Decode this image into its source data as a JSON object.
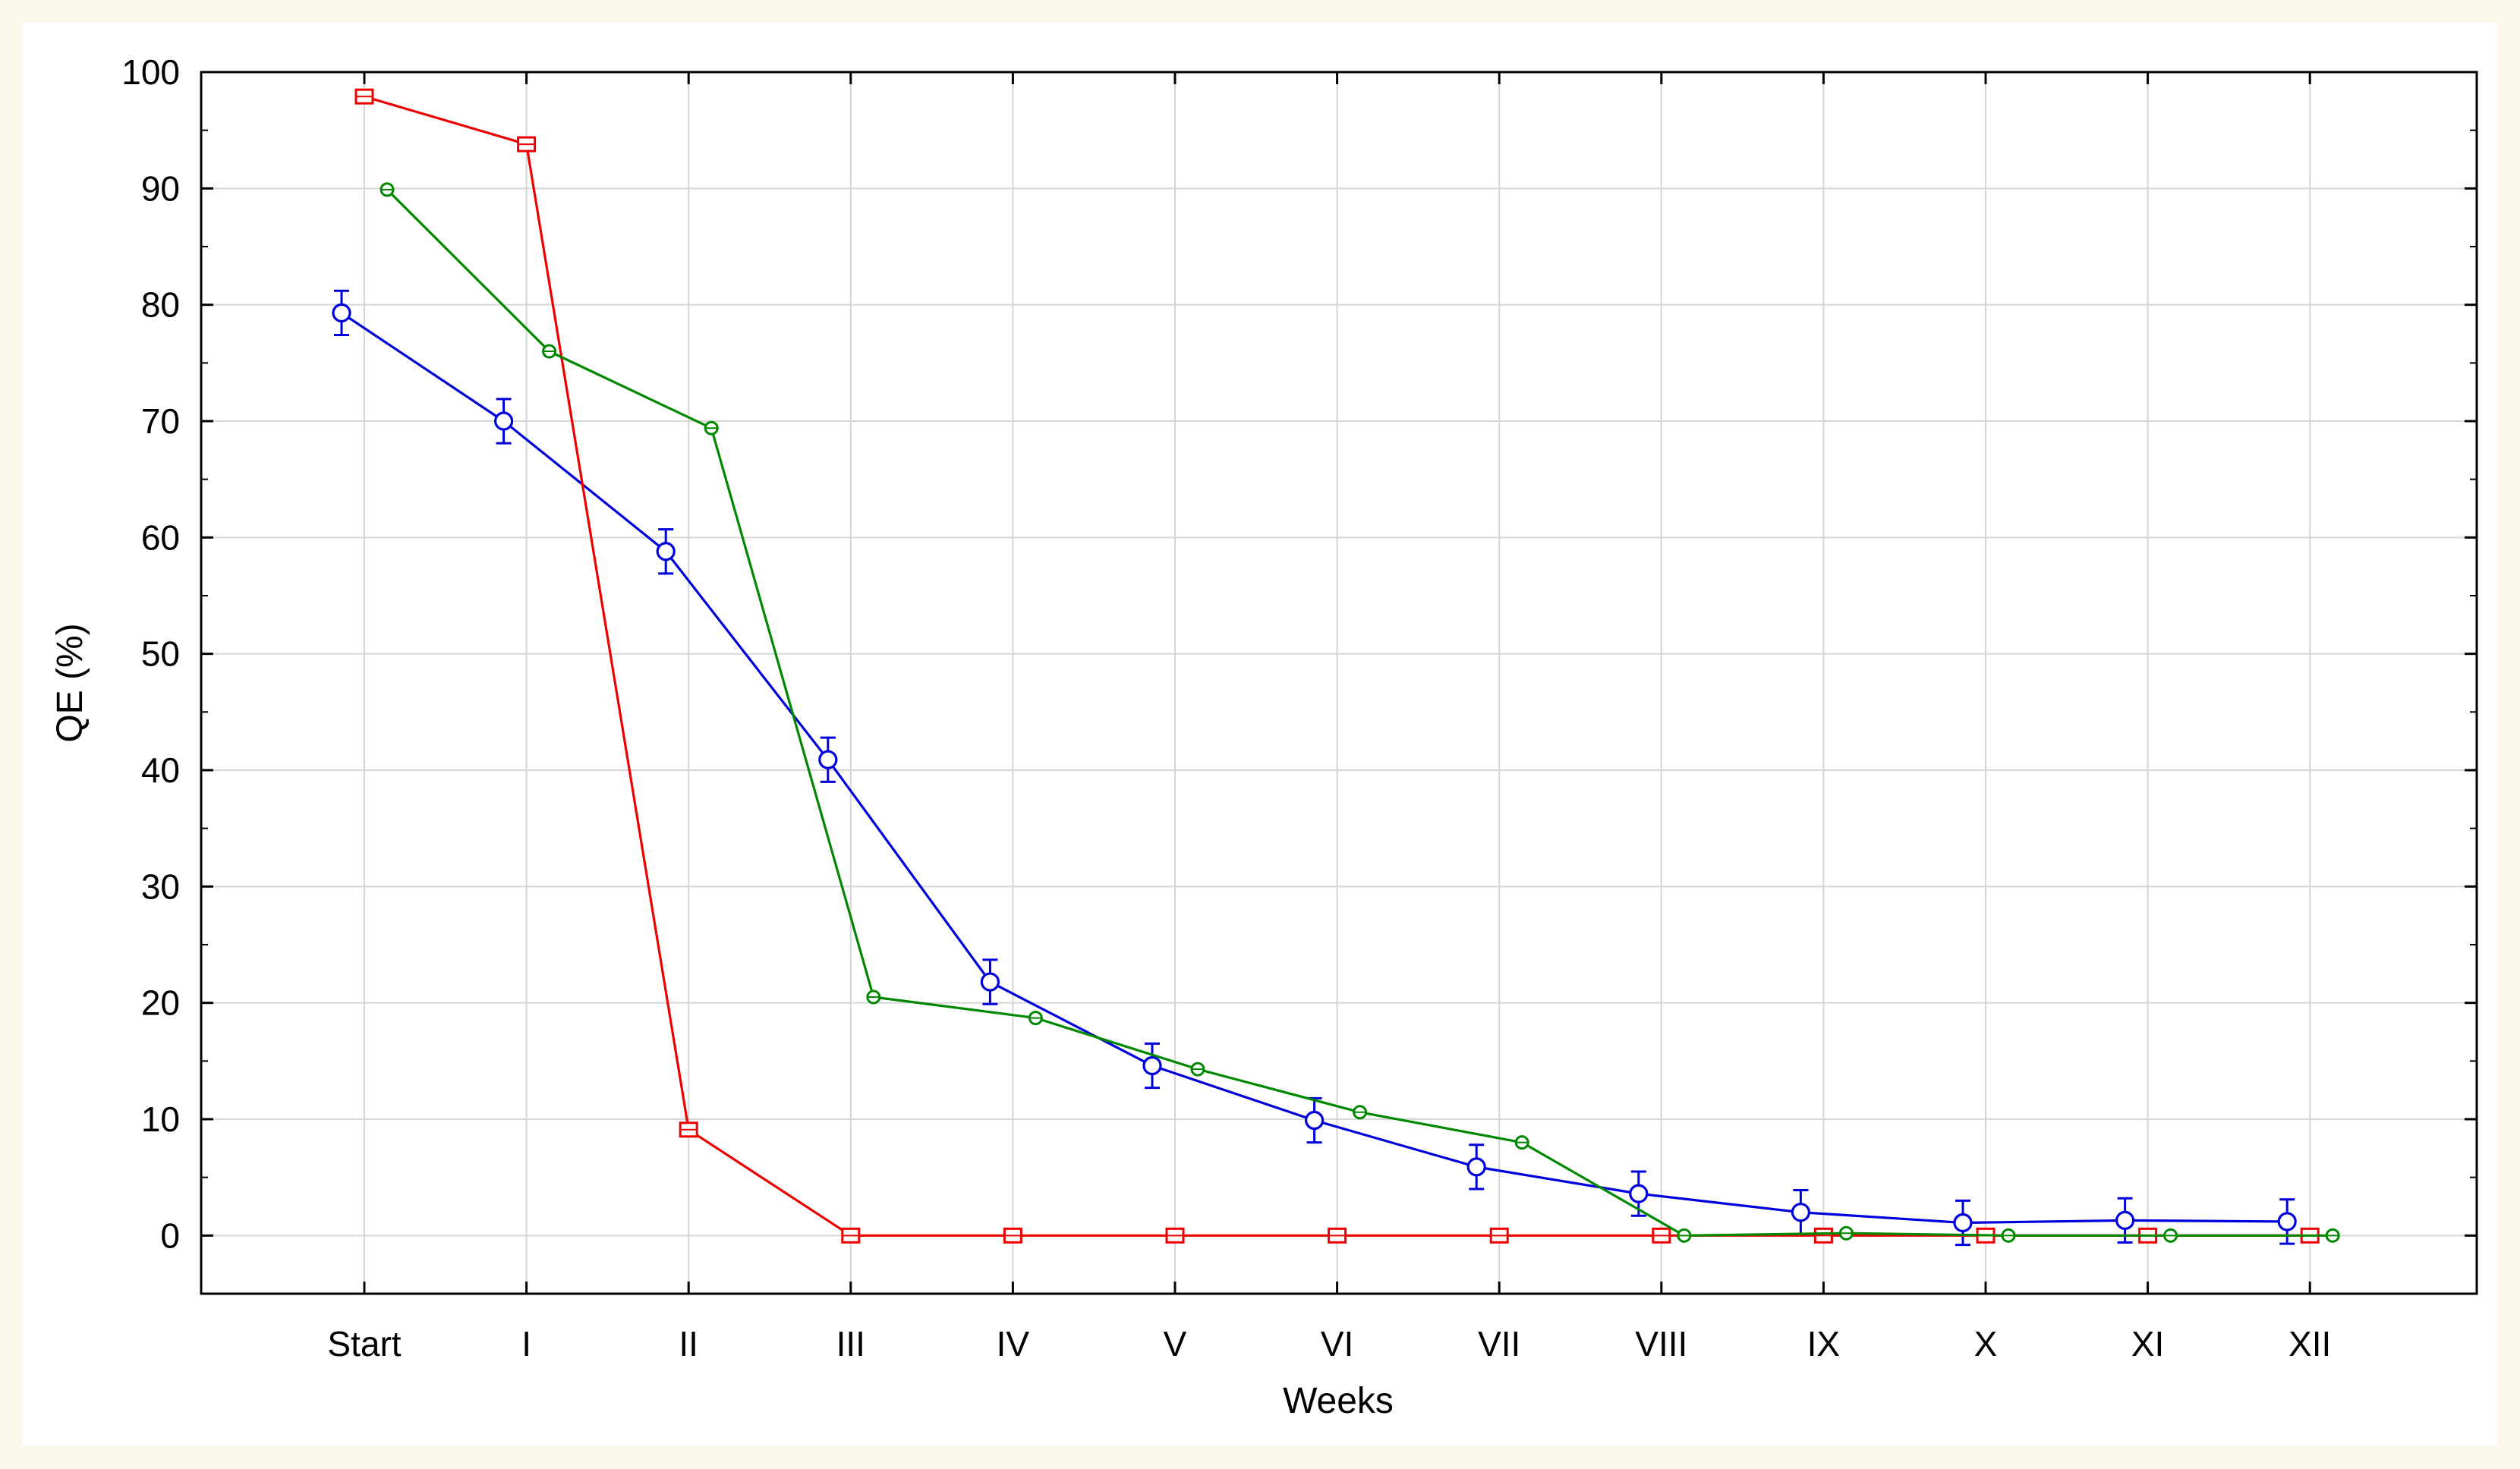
{
  "chart_data": {
    "type": "line",
    "title": "",
    "xlabel": "Weeks",
    "ylabel": "QE (%)",
    "categories": [
      "Start",
      "I",
      "II",
      "III",
      "IV",
      "V",
      "VI",
      "VII",
      "VIII",
      "IX",
      "X",
      "XI",
      "XII"
    ],
    "ylim": [
      -5,
      100
    ],
    "yticks": [
      0,
      10,
      20,
      30,
      40,
      50,
      60,
      70,
      80,
      90,
      100
    ],
    "grid": true,
    "legend": "none",
    "series": [
      {
        "color": "#0000dd",
        "marker": "circle",
        "offset": "left",
        "values": [
          79.3,
          70.0,
          58.8,
          40.9,
          21.8,
          14.6,
          9.9,
          5.9,
          3.6,
          2.0,
          1.1,
          1.3,
          1.2
        ],
        "errors": [
          1.9,
          1.9,
          1.9,
          1.9,
          1.9,
          1.9,
          1.9,
          1.9,
          1.9,
          1.9,
          1.9,
          1.9,
          1.9
        ]
      },
      {
        "color": "#ee0000",
        "marker": "square",
        "offset": "center",
        "values": [
          97.9,
          93.8,
          9.1,
          0,
          0,
          0,
          0,
          0,
          0,
          0,
          0,
          0,
          0
        ],
        "errors": [
          0.5,
          0.5,
          0.5,
          0.4,
          0.4,
          0.4,
          0.4,
          0.4,
          0.4,
          0.4,
          0.4,
          0.4,
          0.4
        ]
      },
      {
        "color": "#008800",
        "marker": "circle-small",
        "offset": "right",
        "values": [
          89.9,
          76.0,
          69.4,
          20.5,
          18.7,
          14.3,
          10.6,
          8.0,
          0,
          0.2,
          0,
          0,
          0
        ],
        "errors": [
          0.5,
          0.5,
          0.5,
          0.5,
          0.5,
          0.5,
          0.5,
          0.5,
          0.5,
          0.5,
          0.5,
          0.5,
          0.5
        ]
      }
    ]
  }
}
